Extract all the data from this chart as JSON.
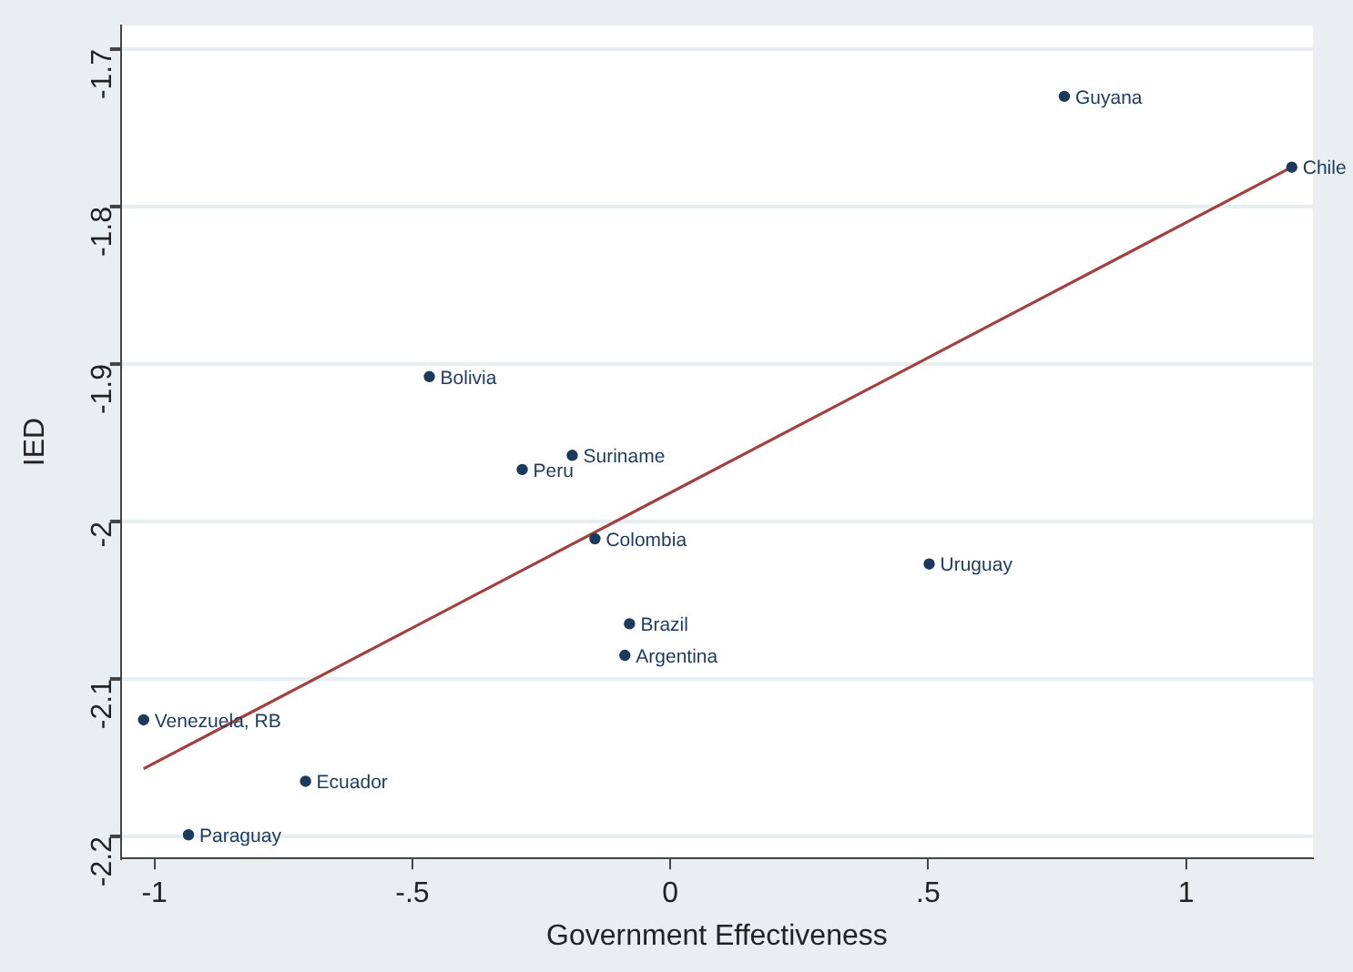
{
  "chart_data": {
    "type": "scatter",
    "xlabel": "Government Effectiveness",
    "ylabel": "IED",
    "xlim": [
      -1.065,
      1.246
    ],
    "ylim": [
      -2.214,
      -1.685
    ],
    "xticks": [
      {
        "value": -1,
        "label": "-1"
      },
      {
        "value": -0.5,
        "label": "-.5"
      },
      0,
      {
        "value": 0.5,
        "label": ".5"
      },
      1
    ],
    "yticks": [
      -2.2,
      -2.1,
      -2,
      -1.9,
      -1.8,
      -1.7
    ],
    "grid": "y",
    "legend": false,
    "marker": "circle",
    "series": [
      {
        "color": "#1c3a5e",
        "x": [
          0.764,
          1.205,
          -0.467,
          -0.19,
          -0.287,
          -0.146,
          -0.079,
          -0.088,
          0.502,
          -1.021,
          -0.707,
          -0.934
        ],
        "values": [
          -1.73,
          -1.775,
          -1.908,
          -1.958,
          -1.967,
          -2.011,
          -2.065,
          -2.085,
          -2.027,
          -2.126,
          -2.165,
          -2.199
        ]
      },
      {
        "type": "line",
        "color": "#a3403f",
        "x": [
          -1.021,
          1.205
        ],
        "values": [
          -2.157,
          -1.775
        ],
        "marker": "none"
      }
    ],
    "annotations": [
      {
        "text": "Guyana",
        "x": 0.764,
        "y": -1.73
      },
      {
        "text": "Chile",
        "x": 1.205,
        "y": -1.775
      },
      {
        "text": "Bolivia",
        "x": -0.467,
        "y": -1.908
      },
      {
        "text": "Suriname",
        "x": -0.19,
        "y": -1.958
      },
      {
        "text": "Peru",
        "x": -0.287,
        "y": -1.967
      },
      {
        "text": "Colombia",
        "x": -0.146,
        "y": -2.011
      },
      {
        "text": "Brazil",
        "x": -0.079,
        "y": -2.065
      },
      {
        "text": "Argentina",
        "x": -0.088,
        "y": -2.085
      },
      {
        "text": "Uruguay",
        "x": 0.502,
        "y": -2.027
      },
      {
        "text": "Venezuela, RB",
        "x": -1.021,
        "y": -2.126
      },
      {
        "text": "Ecuador",
        "x": -0.707,
        "y": -2.165
      },
      {
        "text": "Paraguay",
        "x": -0.934,
        "y": -2.199
      }
    ]
  }
}
